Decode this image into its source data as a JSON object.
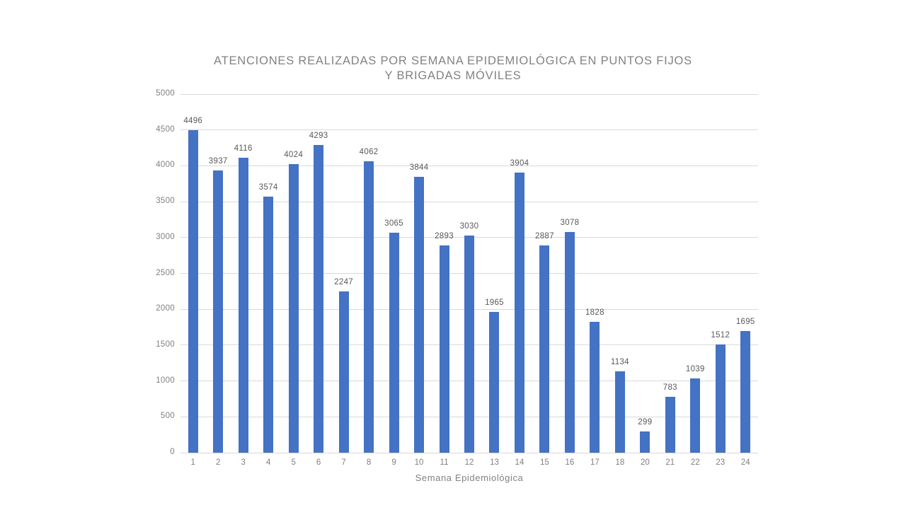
{
  "chart_data": {
    "type": "bar",
    "title": "ATENCIONES REALIZADAS POR SEMANA EPIDEMIOLÓGICA EN PUNTOS FIJOS Y BRIGADAS MÓVILES",
    "title_line1": "ATENCIONES REALIZADAS POR SEMANA EPIDEMIOLÓGICA EN PUNTOS FIJOS",
    "title_line2": "Y BRIGADAS MÓVILES",
    "xlabel": "Semana Epidemiológica",
    "ylabel": "",
    "categories": [
      "1",
      "2",
      "3",
      "4",
      "5",
      "6",
      "7",
      "8",
      "9",
      "10",
      "11",
      "12",
      "13",
      "14",
      "15",
      "16",
      "17",
      "18",
      "20",
      "21",
      "22",
      "23",
      "24"
    ],
    "values": [
      4496,
      3937,
      4116,
      3574,
      4024,
      4293,
      2247,
      4062,
      3065,
      3844,
      2893,
      3030,
      1965,
      3904,
      2887,
      3078,
      1828,
      1134,
      299,
      783,
      1039,
      1512,
      1695
    ],
    "data_labels": [
      "4496",
      "3937",
      "4116",
      "3574",
      "4024",
      "4293",
      "2247",
      "4062",
      "3065",
      "3844",
      "2893",
      "3030",
      "1965",
      "3904",
      "2887",
      "3078",
      "1828",
      "1134",
      "299",
      "783",
      "1039",
      "1512",
      "1695"
    ],
    "y_ticks": [
      0,
      500,
      1000,
      1500,
      2000,
      2500,
      3000,
      3500,
      4000,
      4500,
      5000
    ],
    "ylim": [
      0,
      5000
    ],
    "grid": true,
    "legend_position": "none"
  },
  "colors": {
    "bar": "#4472c4",
    "gridline": "#d9d9d9",
    "tick_label": "#808080",
    "data_label": "#595959",
    "title": "#828282",
    "background": "#ffffff"
  }
}
